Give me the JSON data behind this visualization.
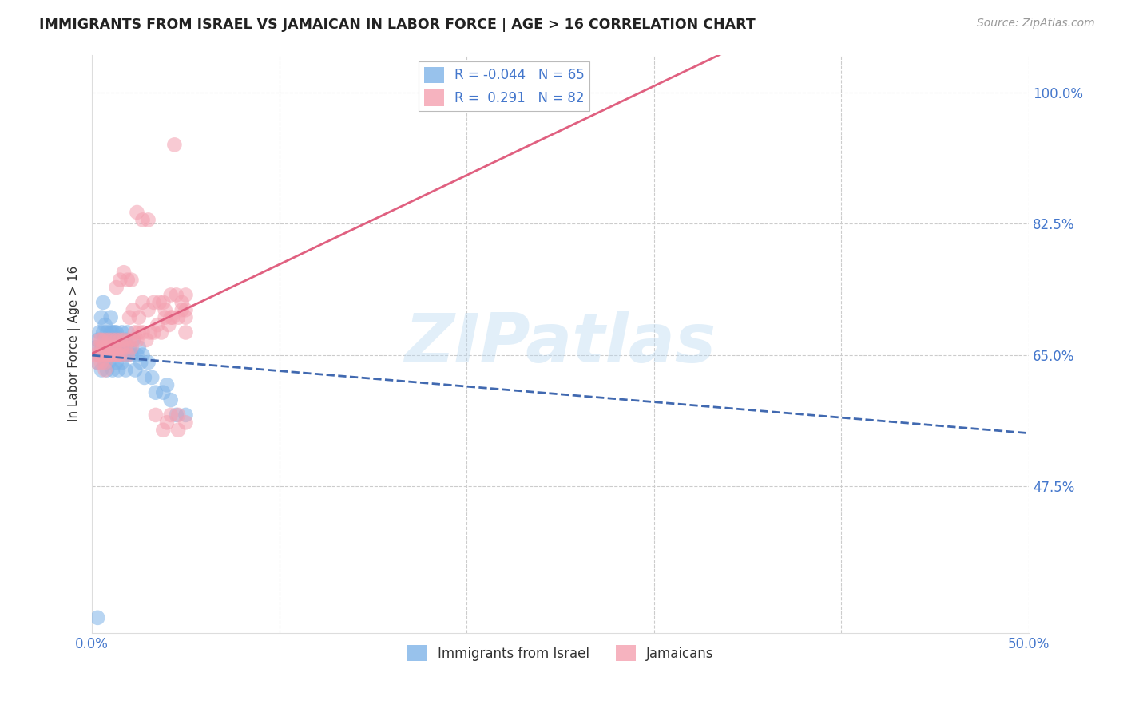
{
  "title": "IMMIGRANTS FROM ISRAEL VS JAMAICAN IN LABOR FORCE | AGE > 16 CORRELATION CHART",
  "source_text": "Source: ZipAtlas.com",
  "ylabel": "In Labor Force | Age > 16",
  "watermark": "ZIPatlas",
  "xlim": [
    0.0,
    0.5
  ],
  "ylim": [
    0.28,
    1.05
  ],
  "xticks": [
    0.0,
    0.1,
    0.2,
    0.3,
    0.4,
    0.5
  ],
  "xticklabels": [
    "0.0%",
    "",
    "",
    "",
    "",
    "50.0%"
  ],
  "yticks_right": [
    0.475,
    0.65,
    0.825,
    1.0
  ],
  "yticklabels_right": [
    "47.5%",
    "65.0%",
    "82.5%",
    "100.0%"
  ],
  "blue_color": "#7EB3E8",
  "pink_color": "#F4A0B0",
  "blue_line_color": "#4169B0",
  "pink_line_color": "#E06080",
  "tick_color": "#4477CC",
  "grid_color": "#CCCCCC",
  "background_color": "#FFFFFF",
  "israel_x": [
    0.002,
    0.003,
    0.003,
    0.004,
    0.004,
    0.005,
    0.005,
    0.005,
    0.006,
    0.006,
    0.006,
    0.007,
    0.007,
    0.007,
    0.008,
    0.008,
    0.008,
    0.008,
    0.009,
    0.009,
    0.009,
    0.01,
    0.01,
    0.01,
    0.01,
    0.011,
    0.011,
    0.011,
    0.012,
    0.012,
    0.012,
    0.013,
    0.013,
    0.013,
    0.014,
    0.014,
    0.014,
    0.015,
    0.015,
    0.016,
    0.016,
    0.017,
    0.017,
    0.018,
    0.018,
    0.019,
    0.019,
    0.02,
    0.021,
    0.022,
    0.023,
    0.024,
    0.025,
    0.026,
    0.027,
    0.028,
    0.03,
    0.032,
    0.034,
    0.038,
    0.04,
    0.042,
    0.045,
    0.05,
    0.003
  ],
  "israel_y": [
    0.66,
    0.67,
    0.64,
    0.68,
    0.65,
    0.7,
    0.66,
    0.63,
    0.68,
    0.65,
    0.72,
    0.66,
    0.69,
    0.64,
    0.67,
    0.65,
    0.63,
    0.68,
    0.66,
    0.64,
    0.67,
    0.65,
    0.68,
    0.66,
    0.7,
    0.65,
    0.68,
    0.63,
    0.67,
    0.65,
    0.68,
    0.66,
    0.64,
    0.68,
    0.65,
    0.67,
    0.63,
    0.66,
    0.65,
    0.68,
    0.64,
    0.66,
    0.65,
    0.67,
    0.63,
    0.65,
    0.68,
    0.66,
    0.65,
    0.67,
    0.63,
    0.65,
    0.66,
    0.64,
    0.65,
    0.62,
    0.64,
    0.62,
    0.6,
    0.6,
    0.61,
    0.59,
    0.57,
    0.57,
    0.3
  ],
  "jamaican_x": [
    0.002,
    0.003,
    0.003,
    0.004,
    0.004,
    0.005,
    0.005,
    0.005,
    0.006,
    0.006,
    0.007,
    0.007,
    0.008,
    0.008,
    0.009,
    0.009,
    0.01,
    0.01,
    0.011,
    0.011,
    0.012,
    0.013,
    0.013,
    0.014,
    0.014,
    0.015,
    0.015,
    0.016,
    0.017,
    0.018,
    0.019,
    0.02,
    0.021,
    0.022,
    0.023,
    0.024,
    0.025,
    0.027,
    0.029,
    0.031,
    0.033,
    0.035,
    0.037,
    0.039,
    0.041,
    0.043,
    0.046,
    0.048,
    0.05,
    0.05,
    0.02,
    0.022,
    0.025,
    0.027,
    0.03,
    0.033,
    0.036,
    0.039,
    0.042,
    0.045,
    0.048,
    0.05,
    0.013,
    0.015,
    0.017,
    0.019,
    0.021,
    0.024,
    0.027,
    0.03,
    0.034,
    0.038,
    0.042,
    0.046,
    0.05,
    0.038,
    0.042,
    0.04,
    0.044,
    0.046,
    0.007,
    0.05
  ],
  "jamaican_y": [
    0.65,
    0.66,
    0.64,
    0.67,
    0.65,
    0.66,
    0.64,
    0.67,
    0.65,
    0.66,
    0.64,
    0.67,
    0.65,
    0.66,
    0.65,
    0.67,
    0.66,
    0.65,
    0.67,
    0.65,
    0.66,
    0.65,
    0.67,
    0.65,
    0.66,
    0.67,
    0.65,
    0.66,
    0.67,
    0.66,
    0.65,
    0.67,
    0.66,
    0.67,
    0.68,
    0.67,
    0.68,
    0.68,
    0.67,
    0.68,
    0.68,
    0.69,
    0.68,
    0.7,
    0.69,
    0.7,
    0.7,
    0.71,
    0.71,
    0.7,
    0.7,
    0.71,
    0.7,
    0.72,
    0.71,
    0.72,
    0.72,
    0.71,
    0.73,
    0.73,
    0.72,
    0.73,
    0.74,
    0.75,
    0.76,
    0.75,
    0.75,
    0.84,
    0.83,
    0.83,
    0.57,
    0.55,
    0.57,
    0.57,
    0.68,
    0.72,
    0.7,
    0.56,
    0.93,
    0.55,
    0.63,
    0.56
  ]
}
